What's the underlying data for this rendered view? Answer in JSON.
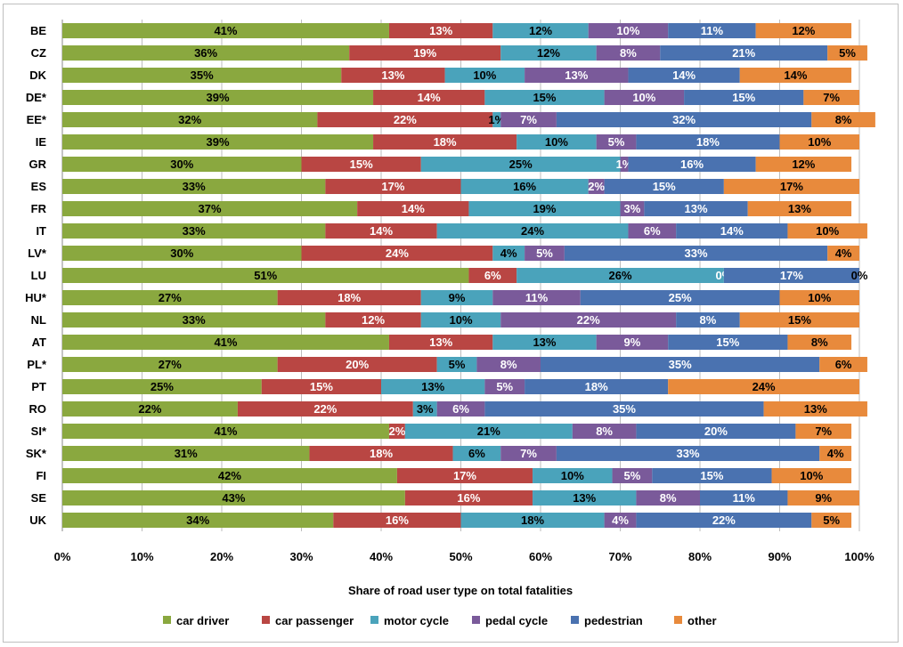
{
  "chart_data": {
    "type": "bar",
    "orientation": "horizontal",
    "stacked": true,
    "xlabel": "Share of road user type on total fatalities",
    "xlim": [
      0,
      100
    ],
    "x_ticks": [
      "0%",
      "10%",
      "20%",
      "30%",
      "40%",
      "50%",
      "60%",
      "70%",
      "80%",
      "90%",
      "100%"
    ],
    "grid": "vertical",
    "legend_position": "bottom",
    "categories": [
      "BE",
      "CZ",
      "DK",
      "DE*",
      "EE*",
      "IE",
      "GR",
      "ES",
      "FR",
      "IT",
      "LV*",
      "LU",
      "HU*",
      "NL",
      "AT",
      "PL*",
      "PT",
      "RO",
      "SI*",
      "SK*",
      "FI",
      "SE",
      "UK"
    ],
    "series": [
      {
        "name": "car driver",
        "color": "#8aa83f",
        "values": [
          41,
          36,
          35,
          39,
          32,
          39,
          30,
          33,
          37,
          33,
          30,
          51,
          27,
          33,
          41,
          27,
          25,
          22,
          41,
          31,
          42,
          43,
          34
        ]
      },
      {
        "name": "car passenger",
        "color": "#b94643",
        "values": [
          13,
          19,
          13,
          14,
          22,
          18,
          15,
          17,
          14,
          14,
          24,
          6,
          18,
          12,
          13,
          20,
          15,
          22,
          2,
          18,
          17,
          16,
          16
        ]
      },
      {
        "name": "motor cycle",
        "color": "#4aa3bb",
        "values": [
          12,
          12,
          10,
          15,
          1,
          10,
          25,
          16,
          19,
          24,
          4,
          26,
          9,
          10,
          13,
          5,
          13,
          3,
          21,
          6,
          10,
          13,
          18
        ]
      },
      {
        "name": "pedal cycle",
        "color": "#7a5a9a",
        "values": [
          10,
          8,
          13,
          10,
          7,
          5,
          1,
          2,
          3,
          6,
          5,
          0,
          11,
          22,
          9,
          8,
          5,
          6,
          8,
          7,
          5,
          8,
          4
        ]
      },
      {
        "name": "pedestrian",
        "color": "#4a72b0",
        "values": [
          11,
          21,
          14,
          15,
          32,
          18,
          16,
          15,
          13,
          14,
          33,
          17,
          25,
          8,
          15,
          35,
          18,
          35,
          20,
          33,
          15,
          11,
          22
        ]
      },
      {
        "name": "other",
        "color": "#e88a3c",
        "values": [
          12,
          5,
          14,
          7,
          8,
          10,
          12,
          17,
          13,
          10,
          4,
          0,
          10,
          15,
          8,
          6,
          24,
          13,
          7,
          4,
          10,
          9,
          5
        ]
      }
    ]
  }
}
